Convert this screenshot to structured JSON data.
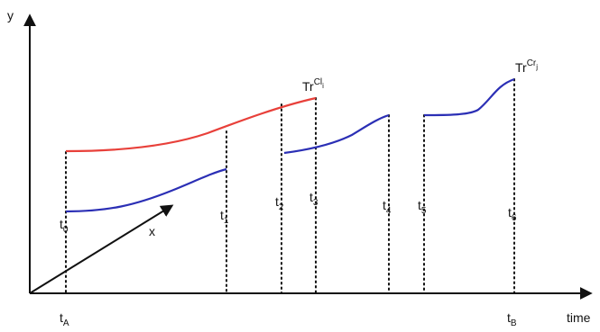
{
  "axes": {
    "y_label": "y",
    "x_label": "time",
    "diag_label": "x"
  },
  "time_labels": {
    "tA": {
      "base": "t",
      "sub": "A"
    },
    "tB": {
      "base": "t",
      "sub": "B"
    },
    "t0": {
      "base": "t",
      "sub": "0"
    },
    "t1": {
      "base": "t",
      "sub": "1"
    },
    "t2": {
      "base": "t",
      "sub": "2"
    },
    "t3": {
      "base": "t",
      "sub": "3"
    },
    "t4": {
      "base": "t",
      "sub": "4"
    },
    "t5": {
      "base": "t",
      "sub": "5"
    },
    "t6": {
      "base": "t",
      "sub": "6"
    }
  },
  "trajectory_labels": {
    "cl": {
      "base": "Tr",
      "sup": "Cl",
      "supsub": "i"
    },
    "cr": {
      "base": "Tr",
      "sup": "Cr",
      "supsub": "j"
    }
  },
  "colors": {
    "red": "#e8403a",
    "blue": "#2b2fb5",
    "axis": "#111111"
  }
}
